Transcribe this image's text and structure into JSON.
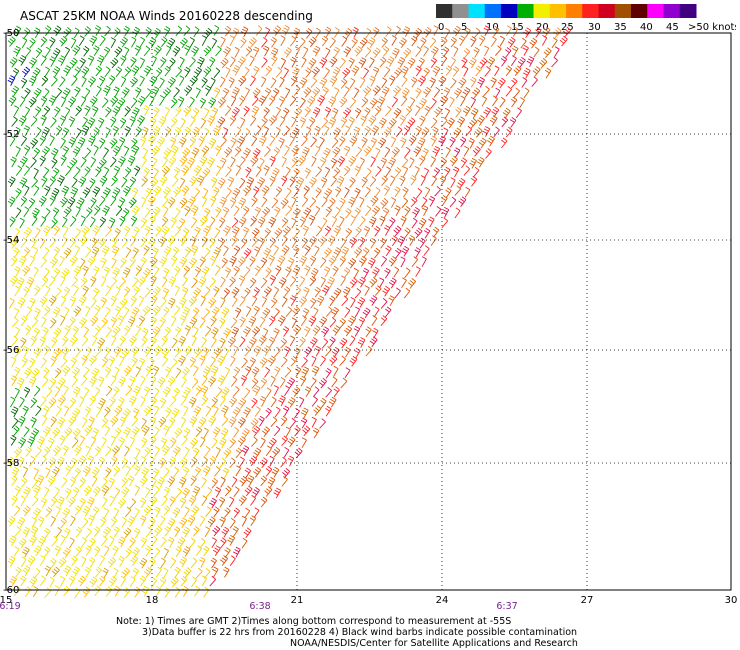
{
  "title": "ASCAT 25KM NOAA Winds 20160228 descending",
  "legend": {
    "ticks": [
      "0",
      "5",
      "10",
      "15",
      "20",
      "25",
      "30",
      "35",
      "40",
      "45",
      ">50 knots"
    ],
    "colors": [
      "#303030",
      "#909090",
      "#00e0ff",
      "#0070ff",
      "#0000c0",
      "#00b000",
      "#f0f000",
      "#ffc000",
      "#ff8000",
      "#ff2020",
      "#d00020",
      "#a05000",
      "#600000",
      "#ff00ff",
      "#9000d0",
      "#400080"
    ]
  },
  "axes": {
    "lat_labels": [
      "-50",
      "-52",
      "-54",
      "-56",
      "-58",
      "-60"
    ],
    "lon_labels": [
      "15",
      "18",
      "21",
      "24",
      "27",
      "30"
    ]
  },
  "pass_times": [
    "6:19",
    "6:38",
    "6:37"
  ],
  "notes": {
    "line1": "Note: 1) Times are GMT 2)Times along bottom correspond to measurement at -55S",
    "line2": "3)Data buffer is 22 hrs from 20160228 4) Black wind barbs indicate possible contamination",
    "line3": "NOAA/NESDIS/Center for Satellite Applications and Research"
  }
}
